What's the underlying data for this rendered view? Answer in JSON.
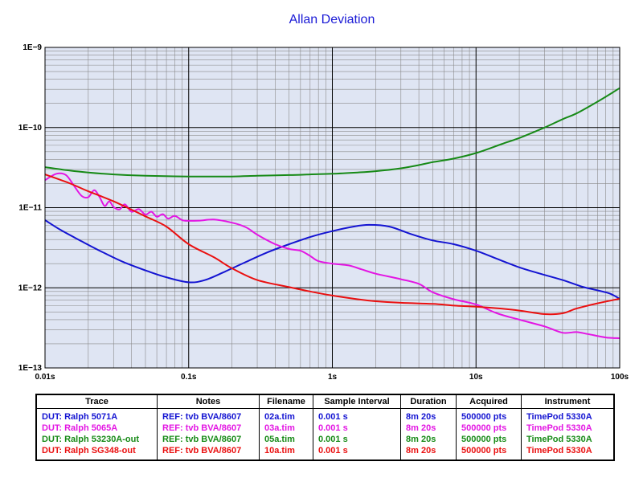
{
  "chart_data": {
    "type": "line",
    "title": "Allan Deviation",
    "x_scale": "log",
    "y_scale": "log",
    "xlim": [
      0.01,
      100
    ],
    "ylim": [
      1e-13,
      1e-09
    ],
    "x_ticks": [
      {
        "value": 0.01,
        "label": "0.01s"
      },
      {
        "value": 0.1,
        "label": "0.1s"
      },
      {
        "value": 1,
        "label": "1s"
      },
      {
        "value": 10,
        "label": "10s"
      },
      {
        "value": 100,
        "label": "100s"
      }
    ],
    "y_ticks": [
      {
        "value": 1e-09,
        "label": "1E−9"
      },
      {
        "value": 1e-10,
        "label": "1E−10"
      },
      {
        "value": 1e-11,
        "label": "1E−11"
      },
      {
        "value": 1e-12,
        "label": "1E−12"
      },
      {
        "value": 1e-13,
        "label": "1E−13"
      }
    ],
    "grid": true,
    "background": "#dfe5f3",
    "series": [
      {
        "name": "DUT: Ralph 5071A",
        "color": "#1414d2",
        "points": [
          [
            0.01,
            7e-12
          ],
          [
            0.013,
            5.2e-12
          ],
          [
            0.018,
            3.8e-12
          ],
          [
            0.025,
            2.8e-12
          ],
          [
            0.035,
            2.1e-12
          ],
          [
            0.05,
            1.65e-12
          ],
          [
            0.07,
            1.35e-12
          ],
          [
            0.1,
            1.17e-12
          ],
          [
            0.13,
            1.25e-12
          ],
          [
            0.18,
            1.6e-12
          ],
          [
            0.25,
            2.1e-12
          ],
          [
            0.35,
            2.75e-12
          ],
          [
            0.5,
            3.5e-12
          ],
          [
            0.7,
            4.3e-12
          ],
          [
            1.0,
            5.1e-12
          ],
          [
            1.4,
            5.8e-12
          ],
          [
            1.8,
            6.1e-12
          ],
          [
            2.5,
            5.8e-12
          ],
          [
            3.5,
            4.7e-12
          ],
          [
            5,
            3.9e-12
          ],
          [
            7,
            3.5e-12
          ],
          [
            10,
            2.9e-12
          ],
          [
            14,
            2.3e-12
          ],
          [
            20,
            1.8e-12
          ],
          [
            28,
            1.5e-12
          ],
          [
            40,
            1.25e-12
          ],
          [
            55,
            1.03e-12
          ],
          [
            70,
            9.3e-13
          ],
          [
            85,
            8.5e-13
          ],
          [
            100,
            7.3e-13
          ]
        ]
      },
      {
        "name": "DUT: Ralph 5065A",
        "color": "#e316e3",
        "points": [
          [
            0.01,
            2.2e-11
          ],
          [
            0.012,
            2.65e-11
          ],
          [
            0.014,
            2.55e-11
          ],
          [
            0.016,
            1.85e-11
          ],
          [
            0.018,
            1.4e-11
          ],
          [
            0.02,
            1.35e-11
          ],
          [
            0.022,
            1.65e-11
          ],
          [
            0.024,
            1.35e-11
          ],
          [
            0.026,
            1.05e-11
          ],
          [
            0.028,
            1.2e-11
          ],
          [
            0.03,
            1.02e-11
          ],
          [
            0.033,
            9.5e-12
          ],
          [
            0.036,
            1.1e-11
          ],
          [
            0.04,
            8.9e-12
          ],
          [
            0.045,
            9.6e-12
          ],
          [
            0.05,
            8.2e-12
          ],
          [
            0.055,
            8.9e-12
          ],
          [
            0.06,
            7.7e-12
          ],
          [
            0.066,
            8.3e-12
          ],
          [
            0.072,
            7.3e-12
          ],
          [
            0.08,
            7.9e-12
          ],
          [
            0.09,
            7e-12
          ],
          [
            0.1,
            6.85e-12
          ],
          [
            0.12,
            6.9e-12
          ],
          [
            0.15,
            7.1e-12
          ],
          [
            0.2,
            6.5e-12
          ],
          [
            0.25,
            5.7e-12
          ],
          [
            0.3,
            4.6e-12
          ],
          [
            0.4,
            3.5e-12
          ],
          [
            0.5,
            3.05e-12
          ],
          [
            0.6,
            2.9e-12
          ],
          [
            0.7,
            2.5e-12
          ],
          [
            0.8,
            2.15e-12
          ],
          [
            1.0,
            2e-12
          ],
          [
            1.3,
            1.9e-12
          ],
          [
            1.6,
            1.7e-12
          ],
          [
            2.0,
            1.5e-12
          ],
          [
            3.0,
            1.28e-12
          ],
          [
            4.0,
            1.12e-12
          ],
          [
            5.0,
            8.8e-13
          ],
          [
            7.0,
            7.2e-13
          ],
          [
            10,
            6.2e-13
          ],
          [
            14,
            4.8e-13
          ],
          [
            20,
            4e-13
          ],
          [
            30,
            3.3e-13
          ],
          [
            40,
            2.75e-13
          ],
          [
            50,
            2.8e-13
          ],
          [
            60,
            2.65e-13
          ],
          [
            80,
            2.4e-13
          ],
          [
            100,
            2.35e-13
          ]
        ]
      },
      {
        "name": "DUT: Ralph 53230A-out",
        "color": "#178a17",
        "points": [
          [
            0.01,
            3.2e-11
          ],
          [
            0.015,
            2.9e-11
          ],
          [
            0.02,
            2.75e-11
          ],
          [
            0.03,
            2.6e-11
          ],
          [
            0.05,
            2.5e-11
          ],
          [
            0.1,
            2.45e-11
          ],
          [
            0.2,
            2.45e-11
          ],
          [
            0.3,
            2.5e-11
          ],
          [
            0.5,
            2.55e-11
          ],
          [
            0.7,
            2.6e-11
          ],
          [
            1.0,
            2.65e-11
          ],
          [
            1.5,
            2.75e-11
          ],
          [
            2,
            2.85e-11
          ],
          [
            3,
            3.1e-11
          ],
          [
            4,
            3.4e-11
          ],
          [
            5,
            3.7e-11
          ],
          [
            7,
            4.1e-11
          ],
          [
            10,
            4.8e-11
          ],
          [
            15,
            6.2e-11
          ],
          [
            20,
            7.4e-11
          ],
          [
            30,
            1e-10
          ],
          [
            40,
            1.27e-10
          ],
          [
            50,
            1.5e-10
          ],
          [
            70,
            2.1e-10
          ],
          [
            100,
            3.1e-10
          ]
        ]
      },
      {
        "name": "DUT: Ralph SG348-out",
        "color": "#ea1010",
        "points": [
          [
            0.01,
            2.6e-11
          ],
          [
            0.015,
            2e-11
          ],
          [
            0.02,
            1.6e-11
          ],
          [
            0.03,
            1.2e-11
          ],
          [
            0.05,
            7.8e-12
          ],
          [
            0.07,
            5.8e-12
          ],
          [
            0.1,
            3.5e-12
          ],
          [
            0.15,
            2.4e-12
          ],
          [
            0.2,
            1.75e-12
          ],
          [
            0.3,
            1.25e-12
          ],
          [
            0.5,
            1.02e-12
          ],
          [
            0.7,
            9e-13
          ],
          [
            1.0,
            8e-13
          ],
          [
            1.5,
            7.2e-13
          ],
          [
            2,
            6.8e-13
          ],
          [
            3,
            6.5e-13
          ],
          [
            5,
            6.3e-13
          ],
          [
            7,
            6e-13
          ],
          [
            10,
            5.8e-13
          ],
          [
            15,
            5.5e-13
          ],
          [
            20,
            5.2e-13
          ],
          [
            30,
            4.7e-13
          ],
          [
            40,
            4.8e-13
          ],
          [
            50,
            5.5e-13
          ],
          [
            70,
            6.4e-13
          ],
          [
            100,
            7.3e-13
          ]
        ]
      }
    ]
  },
  "legend_table": {
    "headers": [
      "Trace",
      "Notes",
      "Filename",
      "Sample Interval",
      "Duration",
      "Acquired",
      "Instrument"
    ],
    "rows": [
      {
        "color": "#1414d2",
        "trace": "DUT: Ralph 5071A",
        "notes": "REF: tvb BVA/8607",
        "filename": "02a.tim",
        "interval": "0.001 s",
        "duration": "8m 20s",
        "acquired": "500000 pts",
        "instrument": "TimePod 5330A"
      },
      {
        "color": "#e316e3",
        "trace": "DUT: Ralph 5065A",
        "notes": "REF: tvb BVA/8607",
        "filename": "03a.tim",
        "interval": "0.001 s",
        "duration": "8m 20s",
        "acquired": "500000 pts",
        "instrument": "TimePod 5330A"
      },
      {
        "color": "#178a17",
        "trace": "DUT: Ralph 53230A-out",
        "notes": "REF: tvb BVA/8607",
        "filename": "05a.tim",
        "interval": "0.001 s",
        "duration": "8m 20s",
        "acquired": "500000 pts",
        "instrument": "TimePod 5330A"
      },
      {
        "color": "#ea1010",
        "trace": "DUT: Ralph SG348-out",
        "notes": "REF: tvb BVA/8607",
        "filename": "10a.tim",
        "interval": "0.001 s",
        "duration": "8m 20s",
        "acquired": "500000 pts",
        "instrument": "TimePod 5330A"
      }
    ]
  }
}
